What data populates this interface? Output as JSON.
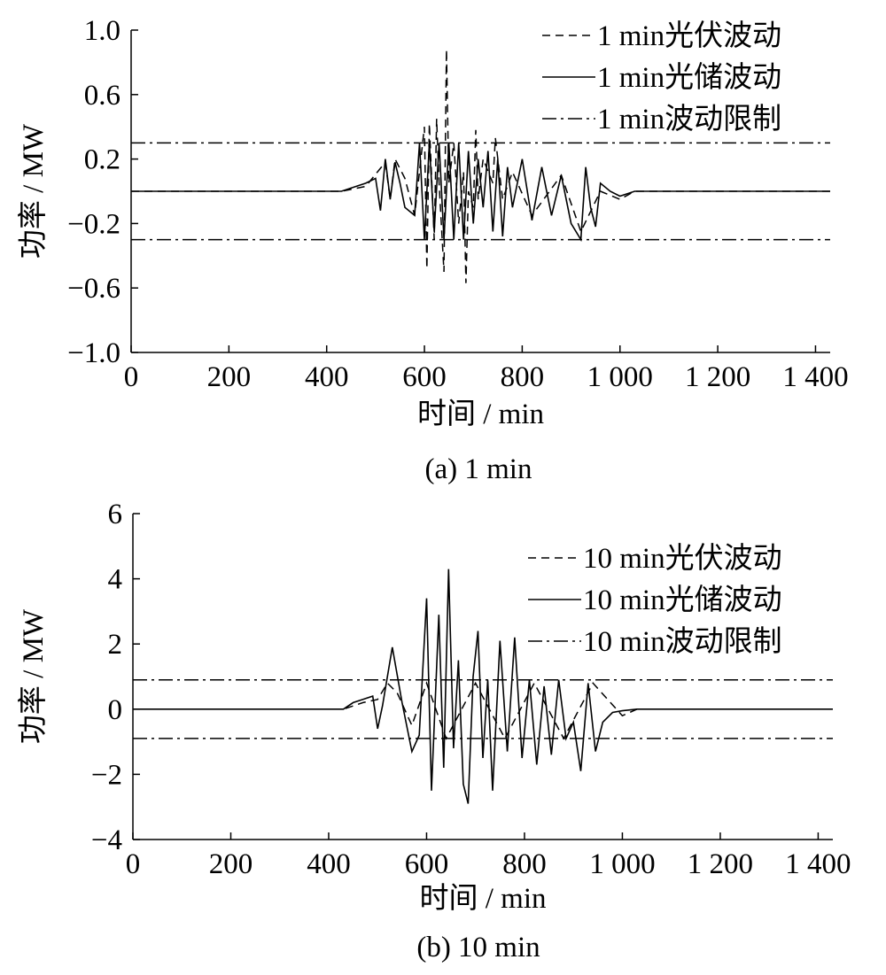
{
  "chart_data": [
    {
      "type": "line",
      "caption": "(a)  1 min",
      "xlabel": "时间 / min",
      "ylabel": "功率 / MW",
      "xlim": [
        0,
        1430
      ],
      "ylim": [
        -1.0,
        1.0
      ],
      "x_ticks": [
        0,
        200,
        400,
        600,
        800,
        1000,
        1200,
        1400
      ],
      "x_tick_labels": [
        "0",
        "200",
        "400",
        "600",
        "800",
        "1 000",
        "1 200",
        "1 400"
      ],
      "y_ticks": [
        1.0,
        0.6,
        0.2,
        -0.2,
        -0.6,
        -1.0
      ],
      "y_tick_labels": [
        "1.0",
        "0.6",
        "0.2",
        "−0.2",
        "−0.6",
        "−1.0"
      ],
      "legend_position": "top-right",
      "limit": 0.3,
      "series": [
        {
          "name": "1 min光伏波动",
          "style": "dashed",
          "x": [
            0,
            430,
            480,
            520,
            530,
            540,
            560,
            580,
            600,
            605,
            610,
            620,
            625,
            630,
            640,
            645,
            650,
            660,
            670,
            680,
            685,
            690,
            700,
            705,
            710,
            720,
            740,
            745,
            760,
            780,
            820,
            880,
            920,
            960,
            1000,
            1030,
            1430
          ],
          "y": [
            0,
            0,
            0.03,
            0.18,
            -0.05,
            0.2,
            0.08,
            -0.15,
            0.4,
            -0.48,
            0.42,
            -0.3,
            0.45,
            0.05,
            -0.5,
            0.88,
            0.05,
            0.3,
            -0.2,
            0.12,
            -0.57,
            0.0,
            -0.1,
            0.38,
            -0.05,
            0.2,
            0.05,
            0.33,
            -0.05,
            0.12,
            -0.15,
            0.1,
            -0.25,
            0.0,
            -0.05,
            0,
            0
          ]
        },
        {
          "name": "1 min光储波动",
          "style": "solid",
          "x": [
            0,
            430,
            460,
            480,
            500,
            510,
            520,
            530,
            540,
            550,
            560,
            580,
            590,
            600,
            610,
            620,
            630,
            640,
            650,
            660,
            670,
            680,
            690,
            700,
            710,
            720,
            730,
            740,
            750,
            760,
            770,
            780,
            800,
            820,
            840,
            860,
            880,
            900,
            920,
            930,
            940,
            950,
            960,
            980,
            1000,
            1030,
            1430
          ],
          "y": [
            0,
            0,
            0.03,
            0.05,
            0.08,
            -0.12,
            0.2,
            -0.05,
            0.18,
            0.05,
            -0.1,
            -0.15,
            0.3,
            -0.3,
            0.3,
            -0.25,
            0.3,
            -0.3,
            0.3,
            -0.3,
            0.3,
            -0.3,
            0.25,
            -0.2,
            0.2,
            -0.1,
            0.25,
            -0.25,
            0.2,
            -0.28,
            0.15,
            -0.1,
            0.2,
            -0.18,
            0.15,
            -0.15,
            0.1,
            -0.2,
            -0.3,
            0.15,
            -0.1,
            -0.22,
            0.05,
            0.0,
            -0.03,
            0,
            0
          ]
        },
        {
          "name": "1 min波动限制",
          "style": "dashdot",
          "x": [
            0,
            1430
          ],
          "y": [
            0.3,
            0.3
          ],
          "mirror": true
        }
      ]
    },
    {
      "type": "line",
      "caption": "(b)  10 min",
      "xlabel": "时间 / min",
      "ylabel": "功率 / MW",
      "xlim": [
        0,
        1430
      ],
      "ylim": [
        -4,
        6
      ],
      "x_ticks": [
        0,
        200,
        400,
        600,
        800,
        1000,
        1200,
        1400
      ],
      "x_tick_labels": [
        "0",
        "200",
        "400",
        "600",
        "800",
        "1 000",
        "1 200",
        "1 400"
      ],
      "y_ticks": [
        6,
        4,
        2,
        0,
        -2,
        -4
      ],
      "y_tick_labels": [
        "6",
        "4",
        "2",
        "0",
        "−2",
        "−4"
      ],
      "legend_position": "top-right",
      "limit": 0.9,
      "series": [
        {
          "name": "10 min光伏波动",
          "style": "dashed",
          "x": [
            0,
            430,
            470,
            500,
            520,
            540,
            570,
            600,
            640,
            700,
            760,
            820,
            880,
            940,
            1000,
            1030,
            1430
          ],
          "y": [
            0,
            0,
            0.2,
            0.3,
            0.8,
            0.5,
            -0.5,
            0.8,
            -0.9,
            0.8,
            -0.9,
            0.8,
            -0.9,
            0.8,
            -0.2,
            0,
            0
          ]
        },
        {
          "name": "10 min光储波动",
          "style": "solid",
          "x": [
            0,
            430,
            450,
            470,
            490,
            500,
            510,
            530,
            550,
            570,
            585,
            600,
            610,
            625,
            635,
            645,
            655,
            665,
            675,
            685,
            695,
            705,
            715,
            725,
            735,
            750,
            765,
            780,
            795,
            810,
            825,
            840,
            855,
            870,
            885,
            900,
            915,
            930,
            945,
            960,
            980,
            1000,
            1030,
            1430
          ],
          "y": [
            0,
            0,
            0.2,
            0.3,
            0.4,
            -0.6,
            0.1,
            1.9,
            0.2,
            -1.3,
            -0.8,
            3.4,
            -2.5,
            2.9,
            -1.8,
            4.3,
            -1.2,
            1.5,
            -2.3,
            -2.9,
            1.0,
            2.4,
            -1.5,
            0.9,
            -2.5,
            2.1,
            -1.3,
            2.2,
            -1.5,
            0.9,
            -1.7,
            0.7,
            -1.4,
            0.9,
            -0.9,
            -0.4,
            -1.9,
            0.8,
            -1.3,
            -0.4,
            -0.1,
            -0.05,
            0,
            0
          ]
        },
        {
          "name": "10 min波动限制",
          "style": "dashdot",
          "x": [
            0,
            1430
          ],
          "y": [
            0.9,
            0.9
          ],
          "mirror": true
        }
      ]
    }
  ]
}
